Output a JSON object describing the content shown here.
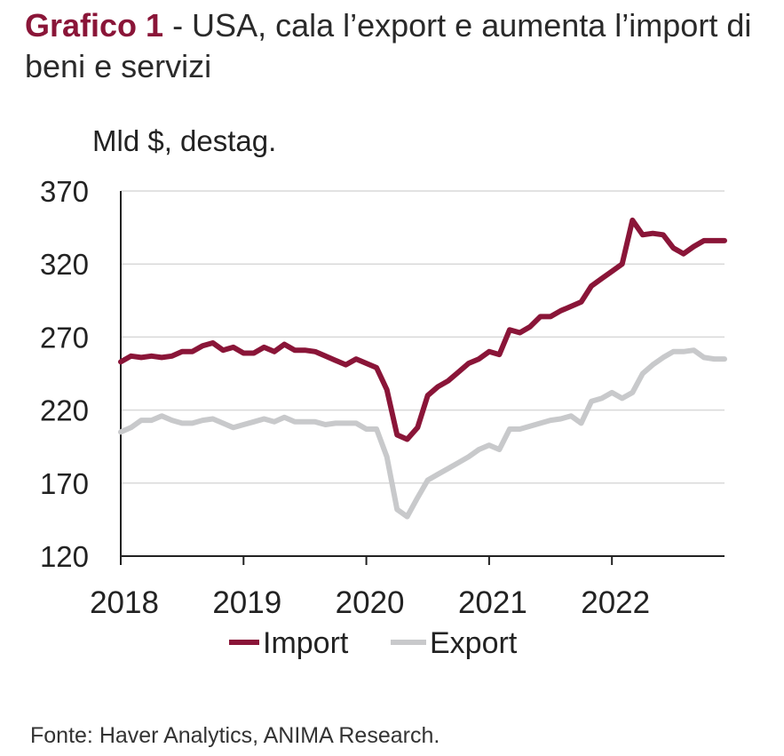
{
  "header": {
    "lead": "Grafico 1",
    "title": " - USA, cala l’export e aumenta l’import di beni e servizi"
  },
  "footer": {
    "source": "Fonte: Haver Analytics, ANIMA Research."
  },
  "colors": {
    "import": "#8a1538",
    "export": "#c8c9cb",
    "grid": "#d9d9d9",
    "axis": "#222222"
  },
  "chart_data": {
    "type": "line",
    "ylabel": "Mld $, destag.",
    "ylim": [
      120,
      370
    ],
    "yticks": [
      370,
      320,
      270,
      220,
      170,
      120
    ],
    "xlim": [
      2018,
      2022.917
    ],
    "xticks": [
      2018,
      2019,
      2020,
      2021,
      2022
    ],
    "grid": true,
    "legend_position": "bottom",
    "series": [
      {
        "name": "Import",
        "color": "#8a1538",
        "x": [
          2018.0,
          2018.083,
          2018.167,
          2018.25,
          2018.333,
          2018.417,
          2018.5,
          2018.583,
          2018.667,
          2018.75,
          2018.833,
          2018.917,
          2019.0,
          2019.083,
          2019.167,
          2019.25,
          2019.333,
          2019.417,
          2019.5,
          2019.583,
          2019.667,
          2019.75,
          2019.833,
          2019.917,
          2020.0,
          2020.083,
          2020.167,
          2020.25,
          2020.333,
          2020.417,
          2020.5,
          2020.583,
          2020.667,
          2020.75,
          2020.833,
          2020.917,
          2021.0,
          2021.083,
          2021.167,
          2021.25,
          2021.333,
          2021.417,
          2021.5,
          2021.583,
          2021.667,
          2021.75,
          2021.833,
          2021.917,
          2022.0,
          2022.083,
          2022.167,
          2022.25,
          2022.333,
          2022.417,
          2022.5,
          2022.583,
          2022.667,
          2022.75,
          2022.833,
          2022.917
        ],
        "y": [
          253,
          257,
          256,
          257,
          256,
          257,
          260,
          260,
          264,
          266,
          261,
          263,
          259,
          259,
          263,
          260,
          265,
          261,
          261,
          260,
          257,
          254,
          251,
          255,
          252,
          249,
          234,
          203,
          200,
          208,
          230,
          236,
          240,
          246,
          252,
          255,
          260,
          258,
          275,
          273,
          277,
          284,
          284,
          288,
          291,
          294,
          305,
          310,
          315,
          320,
          350,
          340,
          341,
          340,
          331,
          327,
          332,
          336,
          336,
          336
        ]
      },
      {
        "name": "Export",
        "color": "#c8c9cb",
        "x": [
          2018.0,
          2018.083,
          2018.167,
          2018.25,
          2018.333,
          2018.417,
          2018.5,
          2018.583,
          2018.667,
          2018.75,
          2018.833,
          2018.917,
          2019.0,
          2019.083,
          2019.167,
          2019.25,
          2019.333,
          2019.417,
          2019.5,
          2019.583,
          2019.667,
          2019.75,
          2019.833,
          2019.917,
          2020.0,
          2020.083,
          2020.167,
          2020.25,
          2020.333,
          2020.417,
          2020.5,
          2020.583,
          2020.667,
          2020.75,
          2020.833,
          2020.917,
          2021.0,
          2021.083,
          2021.167,
          2021.25,
          2021.333,
          2021.417,
          2021.5,
          2021.583,
          2021.667,
          2021.75,
          2021.833,
          2021.917,
          2022.0,
          2022.083,
          2022.167,
          2022.25,
          2022.333,
          2022.417,
          2022.5,
          2022.583,
          2022.667,
          2022.75,
          2022.833,
          2022.917
        ],
        "y": [
          205,
          208,
          213,
          213,
          216,
          213,
          211,
          211,
          213,
          214,
          211,
          208,
          210,
          212,
          214,
          212,
          215,
          212,
          212,
          212,
          210,
          211,
          211,
          211,
          207,
          207,
          188,
          152,
          147,
          160,
          172,
          176,
          180,
          184,
          188,
          193,
          196,
          193,
          207,
          207,
          209,
          211,
          213,
          214,
          216,
          211,
          226,
          228,
          232,
          228,
          232,
          245,
          251,
          256,
          260,
          260,
          261,
          256,
          255,
          255
        ]
      }
    ]
  }
}
